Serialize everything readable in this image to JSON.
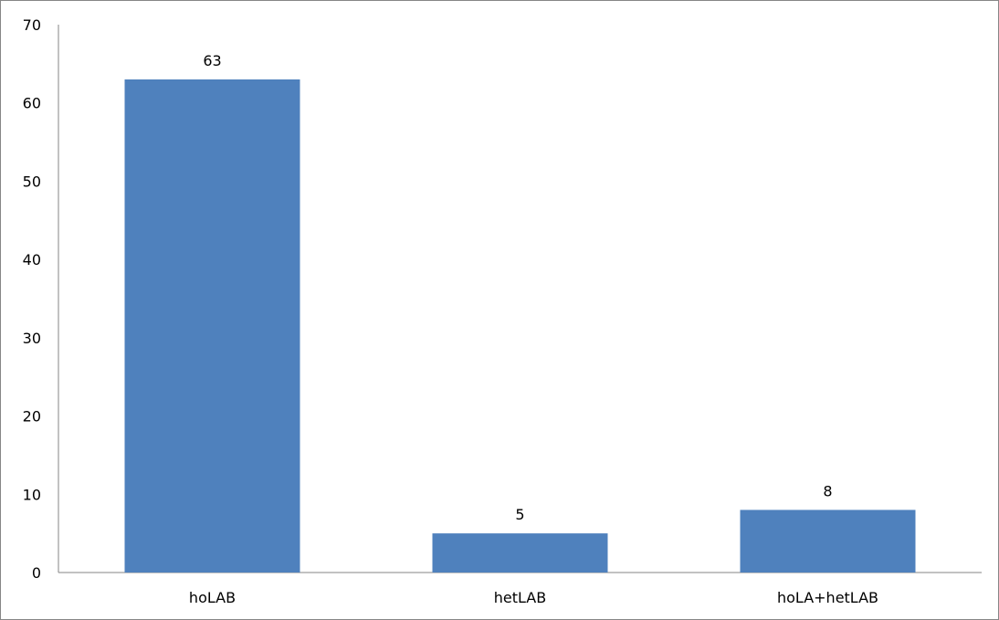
{
  "chart_data": {
    "type": "bar",
    "categories": [
      "hoLAB",
      "hetLAB",
      "hoLA+hetLAB"
    ],
    "values": [
      63,
      5,
      8
    ],
    "data_labels": [
      "63",
      "5",
      "8"
    ],
    "ylim": [
      0,
      70
    ],
    "yticks": [
      0,
      10,
      20,
      30,
      40,
      50,
      60,
      70
    ],
    "grid": false,
    "legend": "none",
    "bar_color": "#4f81bd"
  }
}
